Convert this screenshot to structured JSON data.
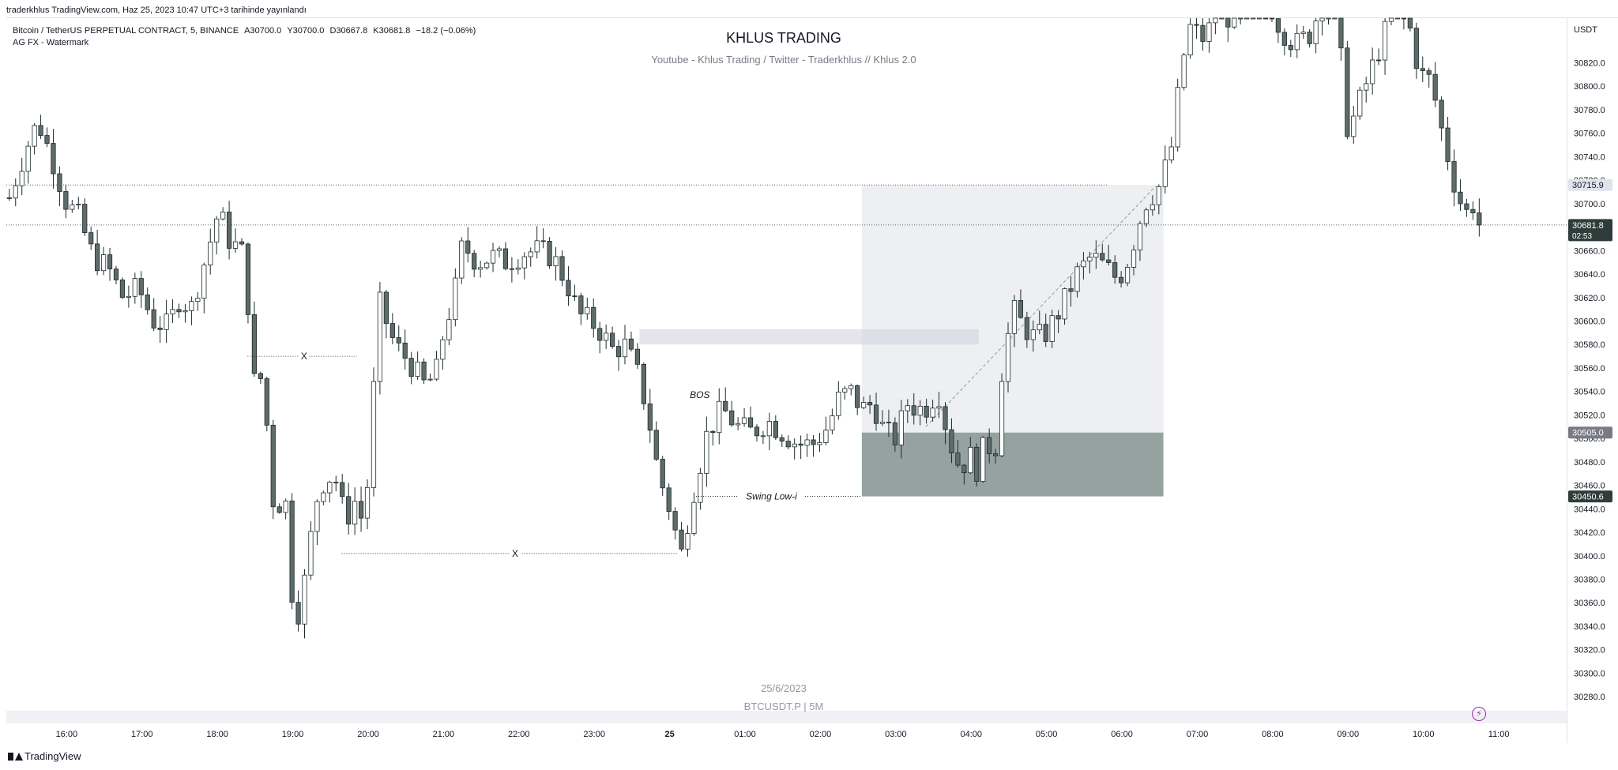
{
  "header": {
    "published": "traderkhlus TradingView.com, Haz 25, 2023 10:47 UTC+3 tarihinde yayınlandı"
  },
  "legend": {
    "symbol": "Bitcoin / TetherUS PERPETUAL CONTRACT, 5, BINANCE",
    "open": "A30700.0",
    "high": "Y30700.0",
    "low": "D30667.8",
    "close": "K30681.8",
    "change": "−18.2 (−0.06%)",
    "indicator": "AG FX - Watermark"
  },
  "watermark": {
    "title": "KHLUS TRADING",
    "subtitle": "Youtube - Khlus Trading / Twitter - Traderkhlus   //  Khlus 2.0",
    "date": "25/6/2023",
    "symbol": "BTCUSDT.P | 5M"
  },
  "footer": {
    "brand": "TradingView"
  },
  "icons": {
    "alert": "lightning-icon",
    "logo": "tradingview-logo-icon"
  },
  "colors": {
    "candle_up_fill": "#ffffff",
    "candle_down_fill": "#5d6b6b",
    "candle_border": "#1e2a2a",
    "zone_fill": "#95a3a0",
    "box_fill": "#eceef2",
    "price_tag_dark": "#2f3d3a",
    "price_tag_grey": "#787b86"
  },
  "chart_data": {
    "type": "candlestick",
    "y_axis": {
      "unit": "USDT",
      "ylim": [
        30268,
        30858
      ],
      "ticks": [
        30280,
        30300,
        30320,
        30340,
        30360,
        30380,
        30400,
        30420,
        30440,
        30460,
        30480,
        30500,
        30520,
        30540,
        30560,
        30580,
        30600,
        30620,
        30640,
        30660,
        30680,
        30700,
        30720,
        30740,
        30760,
        30780,
        30800,
        30820
      ],
      "tick_labels": [
        "30280.0",
        "30300.0",
        "30320.0",
        "30340.0",
        "30360.0",
        "30380.0",
        "30400.0",
        "30420.0",
        "30440.0",
        "30460.0",
        "30480.0",
        "30500.0",
        "30520.0",
        "30540.0",
        "30560.0",
        "30580.0",
        "30600.0",
        "30620.0",
        "30640.0",
        "30660.0",
        "30680.0",
        "30700.0",
        "30720.0",
        "30740.0",
        "30760.0",
        "30780.0",
        "30800.0",
        "30820.0"
      ]
    },
    "x_axis": {
      "labels": [
        "16:00",
        "17:00",
        "18:00",
        "19:00",
        "20:00",
        "21:00",
        "22:00",
        "23:00",
        "25",
        "01:00",
        "02:00",
        "03:00",
        "04:00",
        "05:00",
        "06:00",
        "07:00",
        "08:00",
        "09:00",
        "10:00",
        "11:00"
      ],
      "hour_offsets": [
        0,
        1,
        2,
        3,
        4,
        5,
        6,
        7,
        8,
        9,
        10,
        11,
        12,
        13,
        14,
        15,
        16,
        17,
        18,
        19
      ],
      "range_hours": [
        -0.8,
        19.9
      ]
    },
    "close_anchors": [
      [
        -0.76,
        30705
      ],
      [
        -0.55,
        30745
      ],
      [
        -0.38,
        30770
      ],
      [
        -0.2,
        30740
      ],
      [
        0.0,
        30700
      ],
      [
        0.15,
        30690
      ],
      [
        0.35,
        30655
      ],
      [
        0.55,
        30645
      ],
      [
        0.75,
        30620
      ],
      [
        0.95,
        30628
      ],
      [
        1.15,
        30600
      ],
      [
        1.35,
        30595
      ],
      [
        1.5,
        30620
      ],
      [
        1.65,
        30610
      ],
      [
        1.85,
        30655
      ],
      [
        2.0,
        30690
      ],
      [
        2.1,
        30682
      ],
      [
        2.2,
        30660
      ],
      [
        2.3,
        30670
      ],
      [
        2.4,
        30620
      ],
      [
        2.5,
        30540
      ],
      [
        2.6,
        30555
      ],
      [
        2.75,
        30440
      ],
      [
        2.9,
        30450
      ],
      [
        3.0,
        30360
      ],
      [
        3.1,
        30350
      ],
      [
        3.2,
        30400
      ],
      [
        3.35,
        30460
      ],
      [
        3.55,
        30470
      ],
      [
        3.7,
        30430
      ],
      [
        3.85,
        30450
      ],
      [
        3.95,
        30420
      ],
      [
        4.05,
        30520
      ],
      [
        4.15,
        30615
      ],
      [
        4.35,
        30580
      ],
      [
        4.55,
        30565
      ],
      [
        4.75,
        30545
      ],
      [
        4.9,
        30555
      ],
      [
        5.0,
        30590
      ],
      [
        5.15,
        30625
      ],
      [
        5.25,
        30665
      ],
      [
        5.45,
        30650
      ],
      [
        5.65,
        30655
      ],
      [
        5.85,
        30650
      ],
      [
        6.05,
        30658
      ],
      [
        6.25,
        30660
      ],
      [
        6.45,
        30655
      ],
      [
        6.65,
        30630
      ],
      [
        6.8,
        30605
      ],
      [
        6.95,
        30600
      ],
      [
        7.1,
        30590
      ],
      [
        7.25,
        30575
      ],
      [
        7.4,
        30580
      ],
      [
        7.55,
        30560
      ],
      [
        7.7,
        30525
      ],
      [
        7.85,
        30470
      ],
      [
        8.0,
        30440
      ],
      [
        8.15,
        30400
      ],
      [
        8.3,
        30450
      ],
      [
        8.5,
        30505
      ],
      [
        8.7,
        30525
      ],
      [
        8.9,
        30510
      ],
      [
        9.1,
        30505
      ],
      [
        9.3,
        30515
      ],
      [
        9.5,
        30505
      ],
      [
        9.7,
        30495
      ],
      [
        9.9,
        30495
      ],
      [
        10.1,
        30510
      ],
      [
        10.25,
        30535
      ],
      [
        10.4,
        30540
      ],
      [
        10.55,
        30525
      ],
      [
        10.7,
        30530
      ],
      [
        10.85,
        30505
      ],
      [
        11.0,
        30500
      ],
      [
        11.15,
        30530
      ],
      [
        11.3,
        30525
      ],
      [
        11.45,
        30528
      ],
      [
        11.55,
        30545
      ],
      [
        11.7,
        30500
      ],
      [
        11.85,
        30475
      ],
      [
        12.0,
        30485
      ],
      [
        12.1,
        30470
      ],
      [
        12.2,
        30505
      ],
      [
        12.3,
        30475
      ],
      [
        12.4,
        30555
      ],
      [
        12.55,
        30610
      ],
      [
        12.7,
        30595
      ],
      [
        12.85,
        30585
      ],
      [
        13.0,
        30590
      ],
      [
        13.2,
        30612
      ],
      [
        13.4,
        30640
      ],
      [
        13.6,
        30655
      ],
      [
        13.8,
        30645
      ],
      [
        13.95,
        30635
      ],
      [
        14.1,
        30655
      ],
      [
        14.3,
        30700
      ],
      [
        14.5,
        30715
      ],
      [
        14.65,
        30745
      ],
      [
        14.8,
        30820
      ],
      [
        14.9,
        30850
      ],
      [
        15.1,
        30840
      ],
      [
        15.3,
        30870
      ],
      [
        15.5,
        30850
      ],
      [
        15.7,
        30870
      ],
      [
        15.9,
        30880
      ],
      [
        16.1,
        30850
      ],
      [
        16.3,
        30835
      ],
      [
        16.5,
        30845
      ],
      [
        16.7,
        30880
      ],
      [
        16.85,
        30860
      ],
      [
        17.0,
        30760
      ],
      [
        17.2,
        30795
      ],
      [
        17.4,
        30830
      ],
      [
        17.6,
        30865
      ],
      [
        17.8,
        30855
      ],
      [
        17.95,
        30810
      ],
      [
        18.1,
        30805
      ],
      [
        18.25,
        30760
      ],
      [
        18.4,
        30720
      ],
      [
        18.55,
        30690
      ],
      [
        18.65,
        30700
      ],
      [
        18.75,
        30690
      ],
      [
        18.8,
        30681.8
      ]
    ],
    "horizontal_levels": [
      {
        "price": 30715.9,
        "from_h": -0.8,
        "to_h": 13.8
      },
      {
        "price": 30681.8,
        "from_h": -0.8,
        "to_h": 19.9
      }
    ],
    "price_tags": [
      {
        "price": 30715.9,
        "label": "30715.9",
        "style": "light"
      },
      {
        "price": 30681.8,
        "label": "30681.8",
        "sub": "02:53",
        "style": "dark"
      },
      {
        "price": 30505.0,
        "label": "30505.0",
        "style": "grey"
      },
      {
        "price": 30450.6,
        "label": "30450.6",
        "style": "dark"
      }
    ],
    "position_box": {
      "from_h": 10.55,
      "to_h": 14.55,
      "upper": [
        30505.0,
        30715.9
      ],
      "lower": [
        30450.6,
        30505.0
      ]
    },
    "zones": [
      {
        "from_h": 7.6,
        "to_h": 12.1,
        "low": 30580,
        "high": 30593
      }
    ],
    "trend_line": {
      "from": [
        11.4,
        30510
      ],
      "to": [
        14.45,
        30715
      ]
    },
    "annotations": [
      {
        "text": "X",
        "h": 3.15,
        "price": 30570,
        "line_from_h": 2.4,
        "line_to_h": 3.85
      },
      {
        "text": "X",
        "h": 5.95,
        "price": 30402,
        "line_from_h": 3.65,
        "line_to_h": 8.1
      },
      {
        "text": "BOS",
        "h": 8.4,
        "price": 30537
      },
      {
        "text": "Swing Low-i",
        "h": 9.35,
        "price": 30450.6,
        "line_from_h": 8.35,
        "line_to_h": 10.55
      }
    ]
  }
}
